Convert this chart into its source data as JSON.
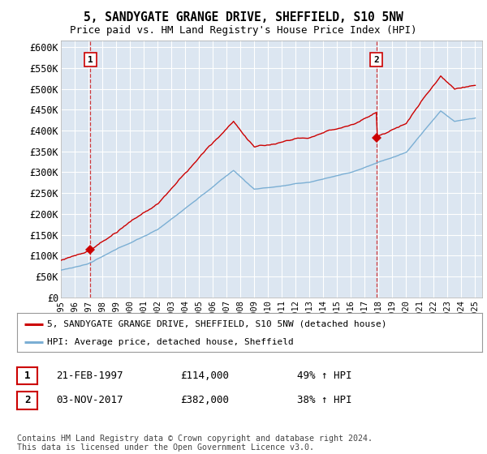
{
  "title1": "5, SANDYGATE GRANGE DRIVE, SHEFFIELD, S10 5NW",
  "title2": "Price paid vs. HM Land Registry's House Price Index (HPI)",
  "ylabel_ticks": [
    "£0",
    "£50K",
    "£100K",
    "£150K",
    "£200K",
    "£250K",
    "£300K",
    "£350K",
    "£400K",
    "£450K",
    "£500K",
    "£550K",
    "£600K"
  ],
  "ytick_values": [
    0,
    50000,
    100000,
    150000,
    200000,
    250000,
    300000,
    350000,
    400000,
    450000,
    500000,
    550000,
    600000
  ],
  "ylim": [
    0,
    615000
  ],
  "xlim_start": 1995.0,
  "xlim_end": 2025.5,
  "xtick_years": [
    1995,
    1996,
    1997,
    1998,
    1999,
    2000,
    2001,
    2002,
    2003,
    2004,
    2005,
    2006,
    2007,
    2008,
    2009,
    2010,
    2011,
    2012,
    2013,
    2014,
    2015,
    2016,
    2017,
    2018,
    2019,
    2020,
    2021,
    2022,
    2023,
    2024,
    2025
  ],
  "plot_background": "#dce6f1",
  "grid_color": "#ffffff",
  "red_line_color": "#cc0000",
  "blue_line_color": "#7bafd4",
  "marker1_x": 1997.13,
  "marker1_y": 114000,
  "marker2_x": 2017.84,
  "marker2_y": 382000,
  "legend_line1": "5, SANDYGATE GRANGE DRIVE, SHEFFIELD, S10 5NW (detached house)",
  "legend_line2": "HPI: Average price, detached house, Sheffield",
  "annotation1_date": "21-FEB-1997",
  "annotation1_price": "£114,000",
  "annotation1_hpi": "49% ↑ HPI",
  "annotation2_date": "03-NOV-2017",
  "annotation2_price": "£382,000",
  "annotation2_hpi": "38% ↑ HPI",
  "footer": "Contains HM Land Registry data © Crown copyright and database right 2024.\nThis data is licensed under the Open Government Licence v3.0."
}
